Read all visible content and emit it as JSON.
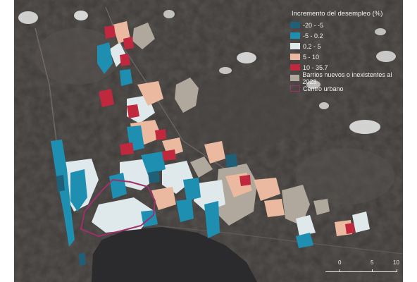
{
  "legend": {
    "title": "Incremento del desempleo (%)",
    "items": [
      {
        "label": "-20 - -5",
        "color": "#1f5f78"
      },
      {
        "label": "-5 - 0.2",
        "color": "#1e8fb0"
      },
      {
        "label": "0.2 - 5",
        "color": "#dfe8ea"
      },
      {
        "label": "5 - 10",
        "color": "#eab9a0"
      },
      {
        "label": "10 - 35.7",
        "color": "#c0283e"
      },
      {
        "label": "Barrios nuevos o inexistentes al 2023",
        "color": "#b0a89c"
      },
      {
        "label": "Centro urbano",
        "color": "#a0306a"
      }
    ]
  },
  "scalebar": {
    "labels": [
      "0",
      "5",
      "10"
    ]
  }
}
